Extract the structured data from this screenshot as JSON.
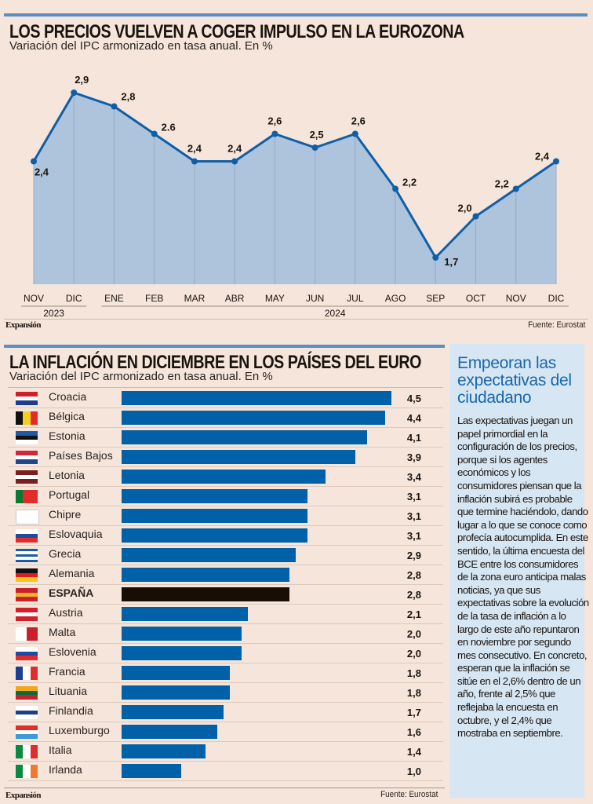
{
  "chart_data": [
    {
      "type": "area",
      "title": "LOS PRECIOS VUELVEN A COGER IMPULSO EN LA EUROZONA",
      "subtitle": "Variación del IPC armonizado en tasa anual. En %",
      "x": [
        "NOV",
        "DIC",
        "ENE",
        "FEB",
        "MAR",
        "ABR",
        "MAY",
        "JUN",
        "JUL",
        "AGO",
        "SEP",
        "OCT",
        "NOV",
        "DIC"
      ],
      "year_groups": [
        {
          "label": "2023",
          "span": 2
        },
        {
          "label": "2024",
          "span": 12
        }
      ],
      "values": [
        2.4,
        2.9,
        2.8,
        2.6,
        2.4,
        2.4,
        2.6,
        2.5,
        2.6,
        2.2,
        1.7,
        2.0,
        2.2,
        2.4
      ],
      "labels": [
        "2,4",
        "2,9",
        "2,8",
        "2.6",
        "2,4",
        "2,4",
        "2,6",
        "2,5",
        "2,6",
        "2,2",
        "1,7",
        "2,0",
        "2,2",
        "2,4"
      ],
      "ylim": [
        0,
        3.1
      ],
      "grid": "vertical",
      "colors": {
        "line": "#0f5fa8",
        "fill": "#aec3dc",
        "gridline": "#9aabc0"
      },
      "source": "Fuente: Eurostat",
      "brand": "Expansión"
    },
    {
      "type": "bar",
      "orientation": "horizontal",
      "title": "LA INFLACIÓN EN DICIEMBRE EN LOS PAÍSES DEL EURO",
      "subtitle": "Variación del IPC armonizado en tasa anual. En %",
      "categories": [
        "Croacia",
        "Bélgica",
        "Estonia",
        "Países Bajos",
        "Letonia",
        "Portugal",
        "Chipre",
        "Eslovaquia",
        "Grecia",
        "Alemania",
        "ESPAÑA",
        "Austria",
        "Malta",
        "Eslovenia",
        "Francia",
        "Lituania",
        "Finlandia",
        "Luxemburgo",
        "Italia",
        "Irlanda"
      ],
      "values": [
        4.5,
        4.4,
        4.1,
        3.9,
        3.4,
        3.1,
        3.1,
        3.1,
        2.9,
        2.8,
        2.8,
        2.1,
        2.0,
        2.0,
        1.8,
        1.8,
        1.7,
        1.6,
        1.4,
        1.0
      ],
      "labels": [
        "4,5",
        "4,4",
        "4,1",
        "3,9",
        "3,4",
        "3,1",
        "3,1",
        "3,1",
        "2,9",
        "2,8",
        "2,8",
        "2,1",
        "2,0",
        "2,0",
        "1,8",
        "1,8",
        "1,7",
        "1,6",
        "1,4",
        "1,0"
      ],
      "highlight": "ESPAÑA",
      "xlim": [
        0,
        4.5
      ],
      "colors": {
        "bar": "#0060a8",
        "highlight": "#180e06"
      },
      "source": "Fuente: Eurostat",
      "brand": "Expansión"
    }
  ],
  "flags": {
    "Croacia": {
      "stripes": [
        "#d0202c",
        "#ffffff",
        "#1b3e92"
      ],
      "dir": "h"
    },
    "Bélgica": {
      "stripes": [
        "#111111",
        "#f5cf1c",
        "#e22b2b"
      ],
      "dir": "v"
    },
    "Estonia": {
      "stripes": [
        "#1e5aa8",
        "#111111",
        "#ffffff"
      ],
      "dir": "h"
    },
    "Países Bajos": {
      "stripes": [
        "#d0283a",
        "#ffffff",
        "#21468b"
      ],
      "dir": "h"
    },
    "Letonia": {
      "stripes": [
        "#7a1e1e",
        "#ffffff",
        "#7a1e1e"
      ],
      "dir": "h"
    },
    "Portugal": {
      "stripes": [
        "#0a7a30",
        "#e22b2b",
        "#e22b2b"
      ],
      "dir": "v"
    },
    "Chipre": {
      "stripes": [
        "#ffffff"
      ],
      "dir": "h"
    },
    "Eslovaquia": {
      "stripes": [
        "#ffffff",
        "#1e4ba0",
        "#e22b2b"
      ],
      "dir": "h"
    },
    "Grecia": {
      "stripes": [
        "#1e5aa8",
        "#ffffff",
        "#1e5aa8",
        "#ffffff",
        "#1e5aa8"
      ],
      "dir": "h"
    },
    "Alemania": {
      "stripes": [
        "#111111",
        "#dd1c1c",
        "#f5c51c"
      ],
      "dir": "h"
    },
    "ESPAÑA": {
      "stripes": [
        "#c8202c",
        "#f0b41c",
        "#c8202c"
      ],
      "dir": "h"
    },
    "Austria": {
      "stripes": [
        "#d0202c",
        "#ffffff",
        "#d0202c"
      ],
      "dir": "h"
    },
    "Malta": {
      "stripes": [
        "#ffffff",
        "#c8202c"
      ],
      "dir": "v"
    },
    "Eslovenia": {
      "stripes": [
        "#ffffff",
        "#1e4ba0",
        "#e22b2b"
      ],
      "dir": "h"
    },
    "Francia": {
      "stripes": [
        "#1e3e96",
        "#ffffff",
        "#e22b2b"
      ],
      "dir": "v"
    },
    "Lituania": {
      "stripes": [
        "#f0a81c",
        "#0a6a3a",
        "#c8202c"
      ],
      "dir": "h"
    },
    "Finlandia": {
      "stripes": [
        "#ffffff",
        "#1e3e8a",
        "#ffffff"
      ],
      "dir": "h"
    },
    "Luxemburgo": {
      "stripes": [
        "#e22b2b",
        "#ffffff",
        "#3c9ad6"
      ],
      "dir": "h"
    },
    "Italia": {
      "stripes": [
        "#0a8a40",
        "#ffffff",
        "#e22b2b"
      ],
      "dir": "v"
    },
    "Irlanda": {
      "stripes": [
        "#0a8a40",
        "#ffffff",
        "#f07a2c"
      ],
      "dir": "v"
    }
  },
  "sidebar": {
    "title": "Empeoran las expectativas del ciudadano",
    "body": "Las expectativas juegan un papel primordial en la configuración de los precios, porque si los agentes económicos y los consumidores piensan que la inflación subirá es probable que termine haciéndolo, dando lugar a lo que se conoce como profecía autocumplida. En este sentido, la última encuesta del BCE entre los consumidores de la zona euro anticipa malas noticias, ya que sus expectativas sobre la evolución de la tasa de inflación a lo largo de este año repuntaron en noviembre por segundo mes consecutivo. En concreto, esperan que la inflación se sitúe en el 2,6% dentro de un año, frente al 2,5% que reflejaba la encuesta en octubre, y el 2,4% que mostraba en septiembre."
  }
}
